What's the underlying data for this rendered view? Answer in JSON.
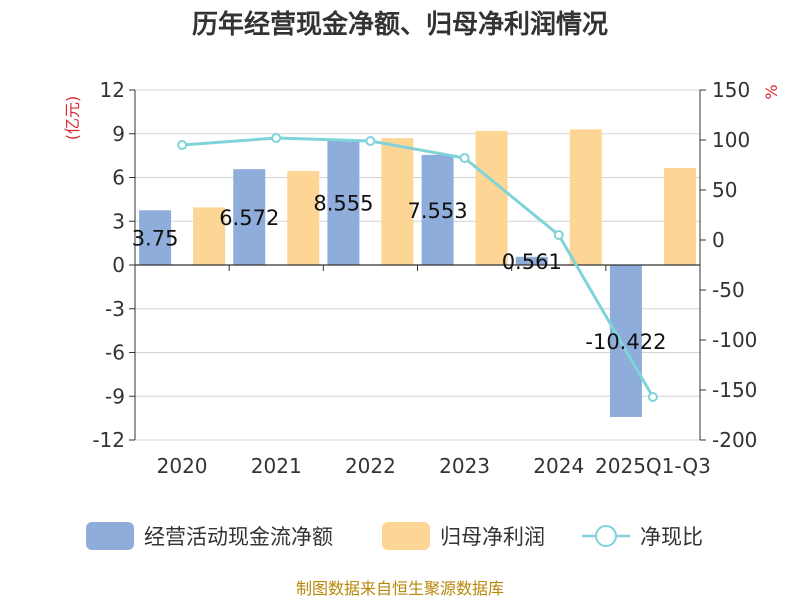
{
  "chart_data": {
    "type": "bar",
    "title": "历年经营现金净额、归母净利润情况",
    "categories": [
      "2020",
      "2021",
      "2022",
      "2023",
      "2024",
      "2025Q1-Q3"
    ],
    "left_axis": {
      "unit": "(亿元)",
      "ylim": [
        -12,
        12
      ],
      "ticks": [
        12,
        9,
        6,
        3,
        0,
        -3,
        -6,
        -9,
        -12
      ]
    },
    "right_axis": {
      "unit": "%",
      "ylim": [
        -200,
        150
      ],
      "ticks": [
        150,
        100,
        50,
        0,
        -50,
        -100,
        -150,
        -200
      ]
    },
    "grid": true,
    "legend_position": "bottom",
    "series": [
      {
        "name": "经营活动现金流净额",
        "kind": "bar",
        "axis": "left",
        "color": "#8eadda",
        "values": [
          3.75,
          6.572,
          8.555,
          7.553,
          0.561,
          -10.422
        ],
        "labels": [
          "3.75",
          "6.572",
          "8.555",
          "7.553",
          "0.561",
          "-10.422"
        ]
      },
      {
        "name": "归母净利润",
        "kind": "bar",
        "axis": "left",
        "color": "#fdd594",
        "values": [
          3.95,
          6.45,
          8.7,
          9.2,
          9.3,
          6.65
        ]
      },
      {
        "name": "净现比",
        "kind": "line",
        "axis": "right",
        "color": "#7fd3d9",
        "values": [
          95,
          102,
          99,
          82,
          5,
          -157
        ]
      }
    ]
  },
  "source": "制图数据来自恒生聚源数据库"
}
